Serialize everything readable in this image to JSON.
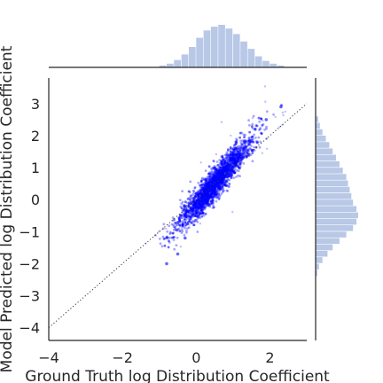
{
  "chart_data": {
    "type": "scatter",
    "title": "",
    "xlabel": "Ground Truth log Distribution Coefficient",
    "ylabel": "Model Predicted log Distribution Coefficient",
    "xlim": [
      -4,
      3
    ],
    "ylim": [
      -4.4,
      3.8
    ],
    "xticks": [
      -4,
      -2,
      0,
      2
    ],
    "yticks": [
      -4,
      -3,
      -2,
      -1,
      0,
      1,
      2,
      3
    ],
    "xtick_labels": [
      "−4",
      "−2",
      "0",
      "2"
    ],
    "ytick_labels": [
      "−4",
      "−3",
      "−2",
      "−1",
      "0",
      "1",
      "2",
      "3"
    ],
    "grid": false,
    "point_color": "#0000ff",
    "marginal_color": "#b8c8e6",
    "reference_line": {
      "style": "dotted",
      "color": "#333333",
      "points": [
        [
          -4,
          -4
        ],
        [
          3,
          3
        ]
      ]
    },
    "trend": {
      "slope": 1.4,
      "intercept": -0.2
    },
    "points": [
      {
        "x": -0.8,
        "y": -2.0
      },
      {
        "x": -0.5,
        "y": -1.7
      },
      {
        "x": -0.3,
        "y": -1.2
      },
      {
        "x": 0.0,
        "y": -0.5
      },
      {
        "x": 0.3,
        "y": 0.0
      },
      {
        "x": 0.5,
        "y": 0.6
      },
      {
        "x": 0.8,
        "y": 1.0
      },
      {
        "x": 1.0,
        "y": 1.4
      },
      {
        "x": 1.3,
        "y": 1.8
      },
      {
        "x": 1.6,
        "y": 2.2
      },
      {
        "x": 1.9,
        "y": 2.5
      },
      {
        "x": 2.3,
        "y": 2.9
      }
    ],
    "marginal_x": {
      "bin_edges": [
        -1.0,
        -0.8,
        -0.6,
        -0.4,
        -0.2,
        0.0,
        0.2,
        0.4,
        0.6,
        0.8,
        1.0,
        1.2,
        1.4,
        1.6,
        1.8,
        2.0,
        2.2,
        2.4
      ],
      "counts": [
        2,
        4,
        8,
        14,
        22,
        32,
        40,
        44,
        46,
        42,
        36,
        28,
        20,
        12,
        7,
        4,
        2
      ]
    },
    "marginal_y": {
      "bin_edges": [
        -2.4,
        -2.2,
        -2.0,
        -1.8,
        -1.6,
        -1.4,
        -1.2,
        -1.0,
        -0.8,
        -0.6,
        -0.4,
        -0.2,
        0.0,
        0.2,
        0.4,
        0.6,
        0.8,
        1.0,
        1.2,
        1.4,
        1.6,
        1.8,
        2.0,
        2.2,
        2.4,
        2.6
      ],
      "counts": [
        2,
        4,
        8,
        14,
        20,
        28,
        36,
        44,
        48,
        50,
        48,
        44,
        42,
        40,
        38,
        36,
        32,
        28,
        24,
        20,
        16,
        12,
        8,
        5,
        3
      ]
    }
  }
}
